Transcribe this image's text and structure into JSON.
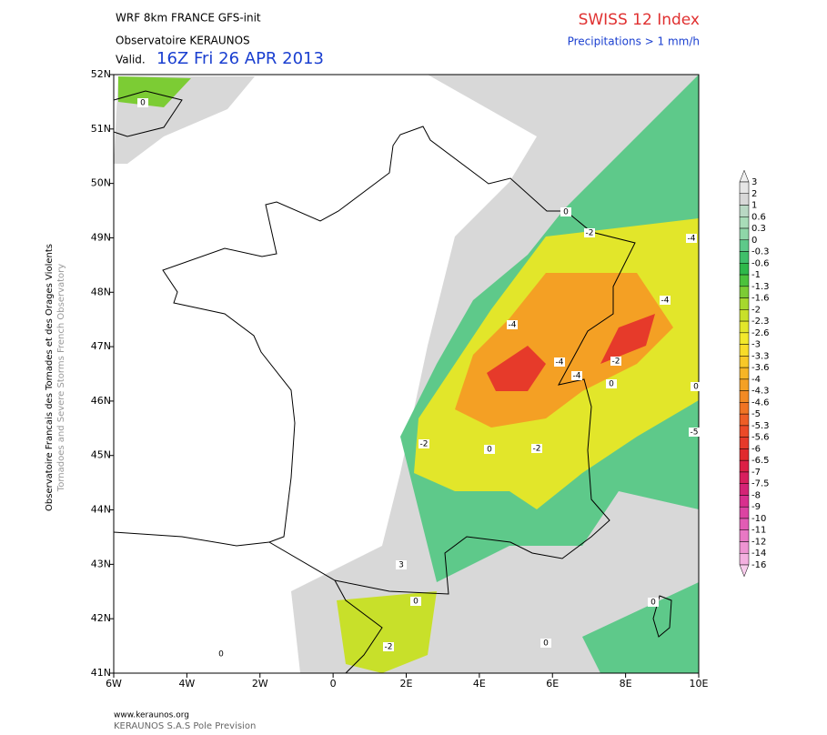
{
  "header": {
    "model": "WRF 8km FRANCE  GFS-init",
    "observatory": "Observatoire KERAUNOS",
    "valid_label": "Valid.",
    "valid_time": "16Z Fri 26 APR 2013",
    "index_title": "SWISS 12 Index",
    "index_subtitle": "Precipitations > 1 mm/h"
  },
  "side": {
    "line1": "Observatoire Francais des Tornades et des Orages Violents",
    "line2": "Tornadoes and Severe Storms French Observatory"
  },
  "axes": {
    "lat_labels": [
      "52N",
      "51N",
      "50N",
      "49N",
      "48N",
      "47N",
      "46N",
      "45N",
      "44N",
      "43N",
      "42N",
      "41N"
    ],
    "lon_labels": [
      "6W",
      "4W",
      "2W",
      "0",
      "2E",
      "4E",
      "6E",
      "8E",
      "10E"
    ]
  },
  "colorbar": {
    "levels": [
      3,
      2,
      1,
      0.6,
      0.3,
      0,
      -0.3,
      -0.6,
      -1,
      -1.3,
      -1.6,
      -2,
      -2.3,
      -2.6,
      -3,
      -3.3,
      -3.6,
      -4,
      -4.3,
      -4.6,
      -5,
      -5.3,
      -5.6,
      -6,
      -6.5,
      -7,
      -7.5,
      -8,
      -9,
      -10,
      -11,
      -12,
      -14,
      -16
    ],
    "colors": [
      "#f0f0f0",
      "#e6e6e6",
      "#d8d8d8",
      "#b9d8c4",
      "#a8dcb8",
      "#8fd6a8",
      "#5ec98a",
      "#3fbf6a",
      "#2eb84a",
      "#4cc23c",
      "#7ccc34",
      "#a6d82e",
      "#c8e02a",
      "#e2e62a",
      "#f2e82c",
      "#f8dc2a",
      "#f8c828",
      "#f6b526",
      "#f4a024",
      "#f28a24",
      "#f07424",
      "#ee5e26",
      "#ec4a28",
      "#e63a2a",
      "#e02a2e",
      "#dc2046",
      "#d8205e",
      "#d42476",
      "#d8308e",
      "#dc44a2",
      "#e25cb4",
      "#e878c4",
      "#ee94d2",
      "#f4b0e0",
      "#f8ccec"
    ]
  },
  "contour_labels": [
    "0",
    "0",
    "-2",
    "-4",
    "-4",
    "-4",
    "-2",
    "-4",
    "-4",
    "0",
    "0",
    "-2",
    "0",
    "-2",
    "-5",
    "3",
    "0",
    "-2",
    "0",
    "0",
    "0"
  ],
  "footer": {
    "url": "www.keraunos.org",
    "company": "KERAUNOS S.A.S Pole Prevision"
  }
}
